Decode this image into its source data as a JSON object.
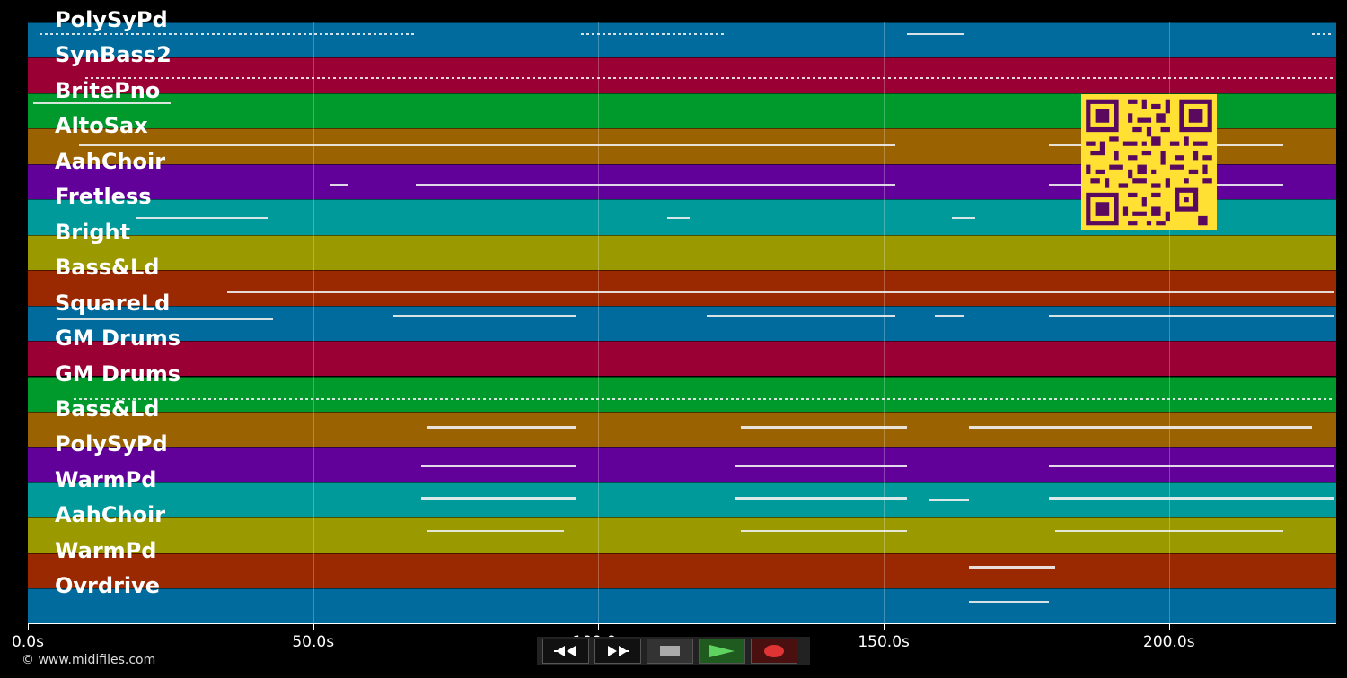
{
  "tracks": [
    {
      "name": "PolySyPd",
      "color": "#006b9c"
    },
    {
      "name": "SynBass2",
      "color": "#9a0033"
    },
    {
      "name": "BritePno",
      "color": "#009a2c"
    },
    {
      "name": "AltoSax",
      "color": "#9a6200"
    },
    {
      "name": "AahChoir",
      "color": "#62009a"
    },
    {
      "name": "Fretless",
      "color": "#009a9a"
    },
    {
      "name": "Bright",
      "color": "#9a9a00"
    },
    {
      "name": "Bass&Ld",
      "color": "#9a2800"
    },
    {
      "name": "SquareLd",
      "color": "#006b9c"
    },
    {
      "name": "GM Drums",
      "color": "#9a0033"
    },
    {
      "name": "GM Drums",
      "color": "#009a2c"
    },
    {
      "name": "Bass&Ld",
      "color": "#9a6200"
    },
    {
      "name": "PolySyPd",
      "color": "#62009a"
    },
    {
      "name": "WarmPd",
      "color": "#009a9a"
    },
    {
      "name": "AahChoir",
      "color": "#9a9a00"
    },
    {
      "name": "WarmPd",
      "color": "#9a2800"
    },
    {
      "name": "Ovrdrive",
      "color": "#006b9c"
    }
  ],
  "time_axis": {
    "ticks": [
      "0.0s",
      "50.0s",
      "100.0s",
      "150.0s",
      "200.0s"
    ],
    "tick_values": [
      0,
      50,
      100,
      150,
      200
    ],
    "max": 229.3
  },
  "controls": {
    "rewind_icon": "rewind-icon",
    "forward_icon": "fast-forward-icon",
    "stop_icon": "stop-icon",
    "play_icon": "play-icon",
    "record_icon": "record-icon"
  },
  "footer": {
    "copyright": "© www.midifiles.com"
  },
  "qr_code": "qr-code-icon"
}
